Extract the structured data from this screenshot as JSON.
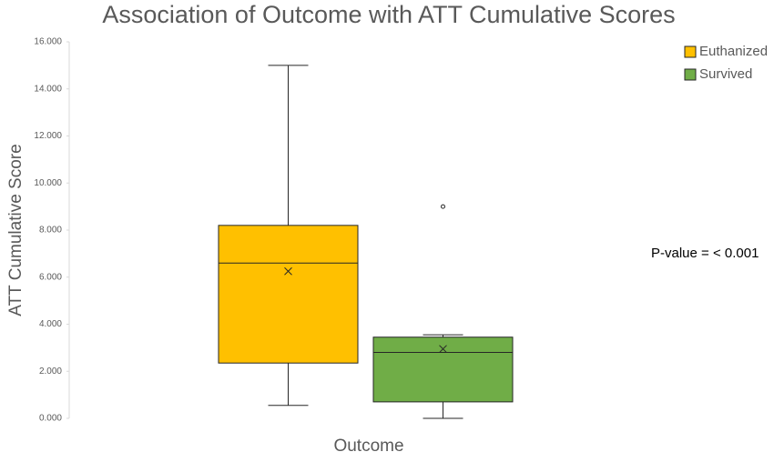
{
  "chart_data": {
    "type": "box",
    "title": "Association of Outcome with ATT Cumulative Scores",
    "x_label": "Outcome",
    "y_label": "ATT Cumulative Score",
    "annotation": "P-value = < 0.001",
    "ylim": [
      0,
      16
    ],
    "yticks": [
      {
        "value": 0,
        "label": "0.000"
      },
      {
        "value": 2,
        "label": "2.000"
      },
      {
        "value": 4,
        "label": "4.000"
      },
      {
        "value": 6,
        "label": "6.000"
      },
      {
        "value": 8,
        "label": "8.000"
      },
      {
        "value": 10,
        "label": "10.000"
      },
      {
        "value": 12,
        "label": "12.000"
      },
      {
        "value": 14,
        "label": "14.000"
      },
      {
        "value": 16,
        "label": "16.000"
      }
    ],
    "legend_position": "top-right",
    "series": [
      {
        "name": "Euthanized",
        "color": "#FFC000",
        "min": 0.55,
        "q1": 2.35,
        "median": 6.6,
        "q3": 8.2,
        "max": 15,
        "mean": 6.25,
        "outliers": []
      },
      {
        "name": "Survived",
        "color": "#70AD47",
        "min": 0,
        "q1": 0.7,
        "median": 2.8,
        "q3": 3.45,
        "max": 3.55,
        "mean": 2.95,
        "outliers": [
          9
        ]
      }
    ]
  }
}
